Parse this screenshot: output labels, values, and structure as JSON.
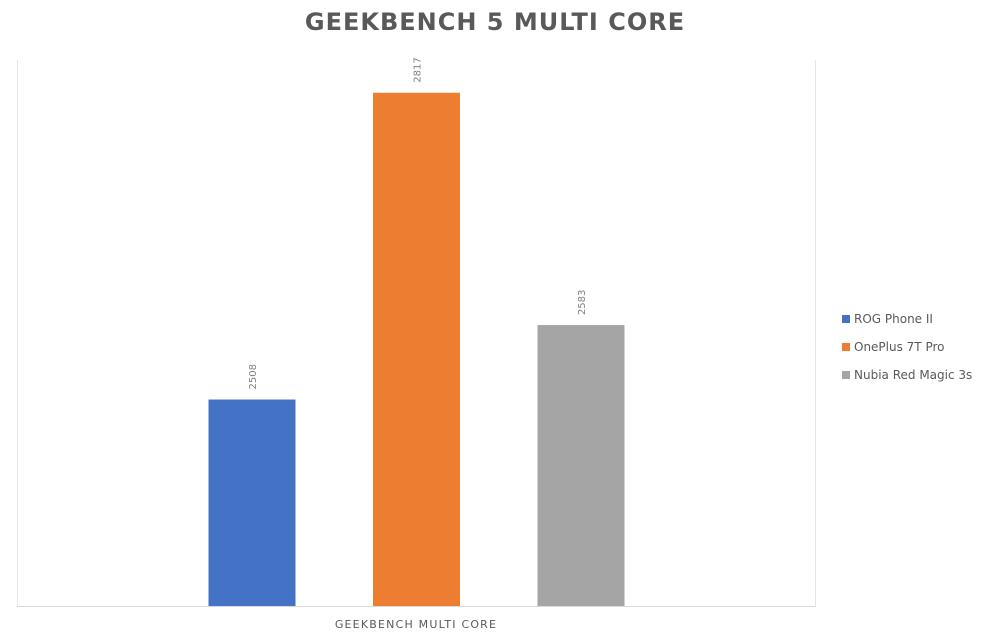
{
  "chart_data": {
    "type": "bar",
    "title": "GEEKBENCH 5 MULTI CORE",
    "categories": [
      "GEEKBENCH MULTI CORE"
    ],
    "series": [
      {
        "name": "ROG Phone II",
        "values": [
          2508
        ],
        "color": "#4472C4"
      },
      {
        "name": "OnePlus 7T Pro",
        "values": [
          2817
        ],
        "color": "#ED7D31"
      },
      {
        "name": "Nubia Red Magic 3s",
        "values": [
          2583
        ],
        "color": "#A5A5A5"
      }
    ],
    "data_labels": [
      "2508",
      "2817",
      "2583"
    ],
    "ylim": [
      2300,
      2850
    ],
    "y_axis_visible": false,
    "grid": false,
    "legend_position": "right"
  }
}
